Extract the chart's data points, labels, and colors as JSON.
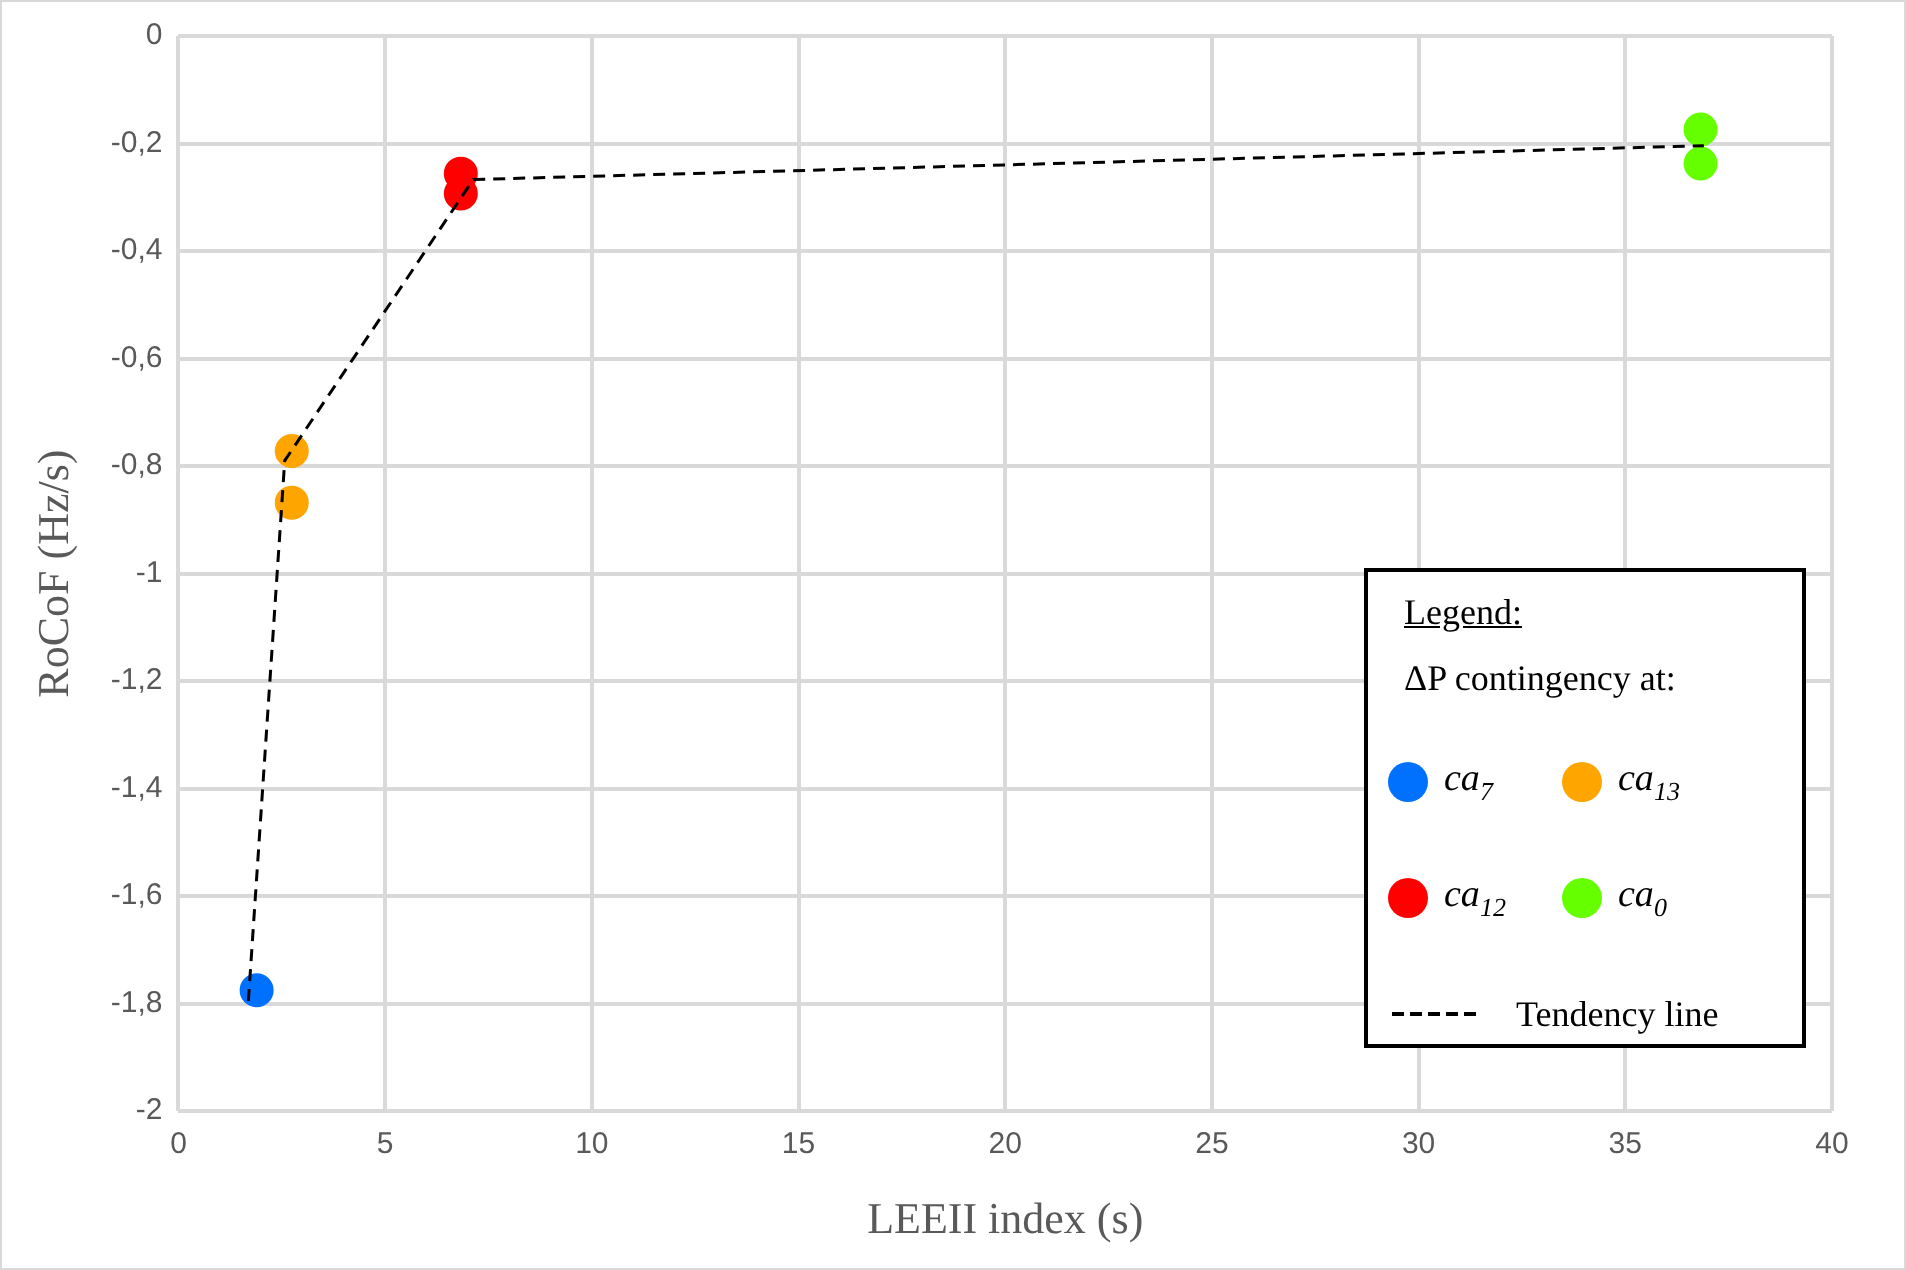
{
  "chart_data": {
    "type": "scatter",
    "xlabel": "LEEII index (s)",
    "ylabel": "RoCoF (Hz/s)",
    "legend_title": "Legend:\nΔP contingency at:",
    "xlim": [
      0,
      40
    ],
    "xticks": [
      0,
      5,
      10,
      15,
      20,
      25,
      30,
      35,
      40
    ],
    "ylim": [
      -2,
      0
    ],
    "yticks": [
      {
        "value": -2,
        "label": "-2"
      },
      {
        "value": -1.8,
        "label": "-1,8"
      },
      {
        "value": -1.6,
        "label": "-1,6"
      },
      {
        "value": -1.4,
        "label": "-1,4"
      },
      {
        "value": -1.2,
        "label": "-1,2"
      },
      {
        "value": -1,
        "label": "-1"
      },
      {
        "value": -0.8,
        "label": "-0,8"
      },
      {
        "value": -0.6,
        "label": "-0,6"
      },
      {
        "value": -0.4,
        "label": "-0,4"
      },
      {
        "value": -0.2,
        "label": "-0,2"
      },
      {
        "value": 0,
        "label": "0"
      }
    ],
    "grid": true,
    "legend": "bottom right",
    "marker": "circle",
    "series": [
      {
        "name": "ca$_{7}$",
        "color": "#0070ff",
        "x": [
          1.89
        ],
        "values": [
          -1.775
        ]
      },
      {
        "name": "ca$_{13}$",
        "color": "#ffa500",
        "x": [
          2.74,
          2.74
        ],
        "values": [
          -0.772,
          -0.868
        ]
      },
      {
        "name": "ca$_{12}$",
        "color": "#ff0000",
        "x": [
          6.83,
          6.83
        ],
        "values": [
          -0.256,
          -0.293
        ]
      },
      {
        "name": "ca$_{0}$",
        "color": "#66ff00",
        "x": [
          36.82,
          36.82
        ],
        "values": [
          -0.174,
          -0.237
        ]
      },
      {
        "name": "Tendency line",
        "type": "line",
        "color": "#000000",
        "marker": "none",
        "line_style": "dashed",
        "x": [
          1.69,
          2.57,
          7.13,
          36.9
        ],
        "values": [
          -1.795,
          -0.79,
          -0.267,
          -0.204
        ]
      }
    ]
  }
}
